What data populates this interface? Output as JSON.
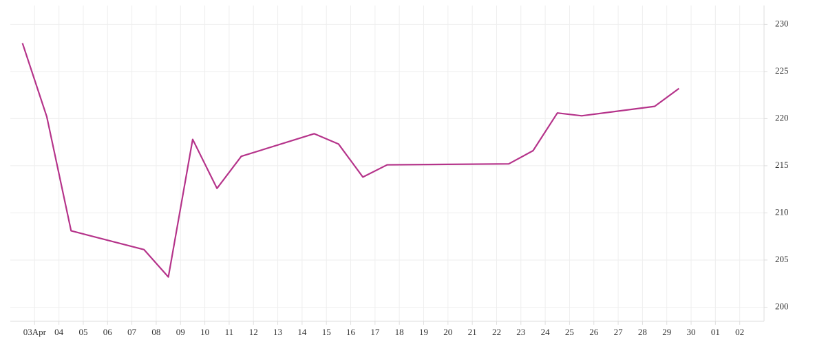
{
  "chart_data": {
    "type": "line",
    "x": [
      2.5,
      3.5,
      4.5,
      7.5,
      8.5,
      9.5,
      10.5,
      11.5,
      14.5,
      15.5,
      16.5,
      17.5,
      22.5,
      23.5,
      24.5,
      25.5,
      28.5,
      29.5
    ],
    "series": [
      {
        "color": "#b5338a",
        "values": [
          228,
          220.2,
          208.1,
          206.1,
          203.2,
          217.8,
          212.6,
          216,
          218.4,
          217.3,
          213.8,
          215.1,
          215.2,
          216.6,
          220.6,
          220.3,
          221.3,
          223.2
        ]
      }
    ],
    "xlim": [
      2,
      33
    ],
    "xticks": [
      {
        "value": 3,
        "label": "03Apr"
      },
      {
        "value": 4,
        "label": "04"
      },
      {
        "value": 5,
        "label": "05"
      },
      {
        "value": 6,
        "label": "06"
      },
      {
        "value": 7,
        "label": "07"
      },
      {
        "value": 8,
        "label": "08"
      },
      {
        "value": 9,
        "label": "09"
      },
      10,
      11,
      12,
      13,
      14,
      15,
      16,
      17,
      18,
      19,
      20,
      21,
      22,
      23,
      24,
      25,
      26,
      27,
      28,
      29,
      30,
      {
        "value": 31,
        "label": "01"
      },
      {
        "value": 32,
        "label": "02"
      }
    ],
    "ylim": [
      198.5,
      232
    ],
    "yticks": [
      200,
      205,
      210,
      215,
      220,
      225,
      230
    ],
    "y_axis_side": "right",
    "grid": true
  }
}
